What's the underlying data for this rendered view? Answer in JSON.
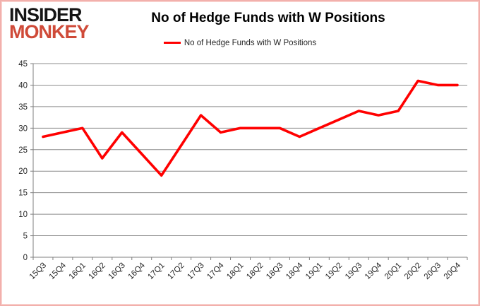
{
  "logo": {
    "line1": "INSIDER",
    "line2": "MONKEY"
  },
  "title": "No of Hedge Funds with W Positions",
  "legend": {
    "label": "No of Hedge Funds with W Positions"
  },
  "colors": {
    "series_line": "#ff0000",
    "logo_accent": "#cf4a38",
    "gridline": "#8c8c8c",
    "axis": "#7f7f7f",
    "tick_text": "#262626",
    "frame_border": "#f2b0ac"
  },
  "chart_data": {
    "type": "line",
    "title": "No of Hedge Funds with W Positions",
    "categories": [
      "15Q3",
      "15Q4",
      "16Q1",
      "16Q2",
      "16Q3",
      "16Q4",
      "17Q1",
      "17Q2",
      "17Q3",
      "17Q4",
      "18Q1",
      "18Q2",
      "18Q3",
      "18Q4",
      "19Q1",
      "19Q2",
      "19Q3",
      "19Q4",
      "20Q1",
      "20Q2",
      "20Q3",
      "20Q4"
    ],
    "series": [
      {
        "name": "No of Hedge Funds with W Positions",
        "color": "#ff0000",
        "values": [
          28,
          29,
          30,
          23,
          29,
          24,
          19,
          26,
          33,
          29,
          30,
          30,
          30,
          28,
          30,
          32,
          34,
          33,
          34,
          41,
          40,
          40
        ]
      }
    ],
    "xlabel": "",
    "ylabel": "",
    "ylim": [
      0,
      45
    ],
    "yticks": [
      0,
      5,
      10,
      15,
      20,
      25,
      30,
      35,
      40,
      45
    ],
    "grid": true,
    "legend_position": "top"
  }
}
